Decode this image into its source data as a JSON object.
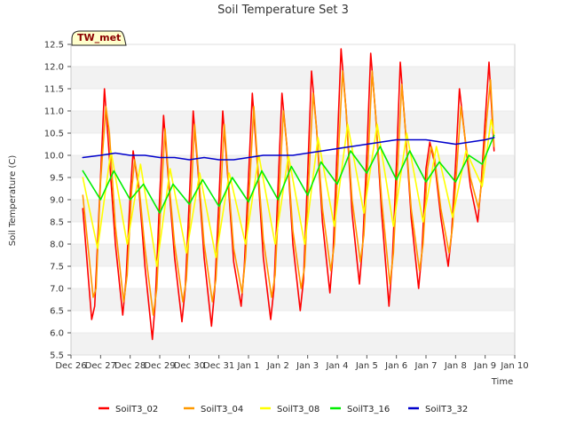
{
  "chart_data": {
    "type": "line",
    "title": "Soil Temperature Set 3",
    "badge": "TW_met",
    "xlabel": "Time",
    "ylabel": "Soil Temperature (C)",
    "xlim": [
      "Dec 26",
      "Jan 10"
    ],
    "ylim": [
      5.5,
      12.5
    ],
    "yticks": [
      5.5,
      6.0,
      6.5,
      7.0,
      7.5,
      8.0,
      8.5,
      9.0,
      9.5,
      10.0,
      10.5,
      11.0,
      11.5,
      12.0,
      12.5
    ],
    "ytick_labels": [
      "5.5",
      "6.0",
      "6.5",
      "7.0",
      "7.5",
      "8.0",
      "8.5",
      "9.0",
      "9.5",
      "10.0",
      "10.5",
      "11.0",
      "11.5",
      "12.0",
      "12.5"
    ],
    "xtick_labels": [
      "Dec 26",
      "Dec 27",
      "Dec 28",
      "Dec 29",
      "Dec 30",
      "Dec 31",
      "Jan 1",
      "Jan 2",
      "Jan 3",
      "Jan 4",
      "Jan 5",
      "Jan 6",
      "Jan 7",
      "Jan 8",
      "Jan 9",
      "Jan 10"
    ],
    "grid": "horizontal bands",
    "legend_position": "bottom",
    "x_unit_note": "x values are days since Dec 26",
    "series": [
      {
        "name": "SoilT3_02",
        "color": "#ff0000",
        "x": [
          0.4,
          0.7,
          0.8,
          1.0,
          1.13,
          1.25,
          1.5,
          1.75,
          1.86,
          2.0,
          2.1,
          2.3,
          2.5,
          2.75,
          2.85,
          3.0,
          3.13,
          3.3,
          3.5,
          3.75,
          3.86,
          4.0,
          4.13,
          4.3,
          4.5,
          4.75,
          4.86,
          5.0,
          5.13,
          5.3,
          5.5,
          5.75,
          5.86,
          6.0,
          6.13,
          6.3,
          6.5,
          6.75,
          6.86,
          7.0,
          7.13,
          7.3,
          7.5,
          7.75,
          7.86,
          8.0,
          8.13,
          8.3,
          8.5,
          8.75,
          8.86,
          9.0,
          9.13,
          9.3,
          9.5,
          9.75,
          9.86,
          10.0,
          10.13,
          10.3,
          10.5,
          10.75,
          10.86,
          11.0,
          11.13,
          11.3,
          11.5,
          11.75,
          11.86,
          12.0,
          12.13,
          12.3,
          12.5,
          12.75,
          12.86,
          13.0,
          13.13,
          13.3,
          13.5,
          13.75,
          13.86,
          14.0,
          14.13,
          14.3
        ],
        "y": [
          8.8,
          6.3,
          6.6,
          9.5,
          11.5,
          10.4,
          8.0,
          6.4,
          7.2,
          9.1,
          10.1,
          9.2,
          7.5,
          5.85,
          6.7,
          9.1,
          10.9,
          9.4,
          7.7,
          6.25,
          7.0,
          9.0,
          11.0,
          9.6,
          7.7,
          6.15,
          7.0,
          9.0,
          11.0,
          9.5,
          7.6,
          6.6,
          7.5,
          9.5,
          11.4,
          9.8,
          7.7,
          6.3,
          7.0,
          9.3,
          11.4,
          10.2,
          8.0,
          6.5,
          7.2,
          9.6,
          11.9,
          10.6,
          8.5,
          6.9,
          7.8,
          10.2,
          12.4,
          11.0,
          8.7,
          7.1,
          8.0,
          10.0,
          12.3,
          10.9,
          8.7,
          6.6,
          7.6,
          9.8,
          12.1,
          10.6,
          8.6,
          7.0,
          7.8,
          9.7,
          10.3,
          9.8,
          8.6,
          7.5,
          8.2,
          9.8,
          11.5,
          10.5,
          9.3,
          8.5,
          9.3,
          10.8,
          12.1,
          10.1
        ]
      },
      {
        "name": "SoilT3_04",
        "color": "#ff9900",
        "x": [
          0.4,
          0.75,
          0.85,
          1.0,
          1.18,
          1.3,
          1.5,
          1.78,
          1.9,
          2.05,
          2.15,
          2.3,
          2.5,
          2.78,
          2.9,
          3.05,
          3.18,
          3.3,
          3.5,
          3.78,
          3.9,
          4.05,
          4.18,
          4.3,
          4.5,
          4.78,
          4.9,
          5.05,
          5.18,
          5.3,
          5.5,
          5.78,
          5.9,
          6.05,
          6.18,
          6.3,
          6.5,
          6.78,
          6.9,
          7.05,
          7.18,
          7.3,
          7.5,
          7.78,
          7.9,
          8.05,
          8.18,
          8.3,
          8.5,
          8.78,
          8.9,
          9.05,
          9.18,
          9.3,
          9.5,
          9.78,
          9.9,
          10.05,
          10.18,
          10.3,
          10.5,
          10.78,
          10.9,
          11.05,
          11.18,
          11.3,
          11.5,
          11.78,
          11.9,
          12.05,
          12.18,
          12.3,
          12.5,
          12.78,
          12.9,
          13.05,
          13.18,
          13.3,
          13.5,
          13.78,
          13.9,
          14.05,
          14.18,
          14.3
        ],
        "y": [
          9.1,
          6.8,
          7.0,
          9.4,
          11.1,
          10.5,
          8.4,
          6.7,
          7.3,
          9.2,
          9.9,
          9.3,
          7.9,
          6.4,
          7.0,
          9.1,
          10.6,
          9.5,
          8.0,
          6.7,
          7.2,
          9.0,
          10.7,
          9.7,
          8.0,
          6.7,
          7.2,
          9.0,
          10.7,
          9.6,
          7.9,
          6.9,
          7.7,
          9.5,
          11.1,
          9.9,
          8.1,
          6.8,
          7.3,
          9.3,
          11.0,
          10.2,
          8.3,
          7.0,
          7.5,
          9.6,
          11.4,
          10.6,
          8.8,
          7.4,
          8.0,
          10.2,
          11.9,
          11.0,
          9.0,
          7.6,
          8.2,
          10.0,
          11.9,
          10.9,
          9.0,
          7.1,
          7.8,
          9.8,
          11.6,
          10.6,
          8.8,
          7.4,
          8.0,
          9.7,
          10.2,
          9.9,
          8.8,
          7.8,
          8.4,
          9.8,
          11.1,
          10.5,
          9.5,
          8.8,
          9.5,
          10.8,
          11.7,
          10.2
        ]
      },
      {
        "name": "SoilT3_08",
        "color": "#ffff00",
        "x": [
          0.4,
          0.9,
          1.35,
          1.9,
          2.35,
          2.9,
          3.35,
          3.9,
          4.35,
          4.9,
          5.35,
          5.9,
          6.35,
          6.9,
          7.35,
          7.9,
          8.35,
          8.9,
          9.35,
          9.9,
          10.35,
          10.9,
          11.35,
          11.9,
          12.35,
          12.9,
          13.35,
          13.9,
          14.2,
          14.3
        ],
        "y": [
          9.5,
          7.9,
          10.1,
          8.0,
          9.8,
          7.5,
          9.7,
          7.8,
          9.6,
          7.7,
          9.6,
          8.0,
          10.0,
          8.0,
          10.0,
          8.0,
          10.4,
          8.4,
          10.7,
          8.7,
          10.7,
          8.4,
          10.5,
          8.5,
          10.2,
          8.6,
          10.1,
          9.3,
          10.8,
          10.5
        ]
      },
      {
        "name": "SoilT3_16",
        "color": "#00ee00",
        "x": [
          0.4,
          1.0,
          1.45,
          2.0,
          2.45,
          3.0,
          3.45,
          4.0,
          4.45,
          5.0,
          5.45,
          6.0,
          6.45,
          7.0,
          7.45,
          8.0,
          8.45,
          9.0,
          9.45,
          10.0,
          10.45,
          11.0,
          11.45,
          12.0,
          12.45,
          13.0,
          13.45,
          13.9,
          14.3
        ],
        "y": [
          9.65,
          9.0,
          9.65,
          9.0,
          9.35,
          8.7,
          9.35,
          8.9,
          9.45,
          8.85,
          9.5,
          8.95,
          9.65,
          9.0,
          9.75,
          9.1,
          9.85,
          9.35,
          10.1,
          9.6,
          10.2,
          9.45,
          10.1,
          9.4,
          9.85,
          9.4,
          10.0,
          9.8,
          10.45
        ]
      },
      {
        "name": "SoilT3_32",
        "color": "#0000cc",
        "x": [
          0.4,
          1.0,
          1.5,
          2.0,
          2.5,
          3.0,
          3.5,
          4.0,
          4.5,
          5.0,
          5.5,
          6.0,
          6.5,
          7.0,
          7.5,
          8.0,
          8.5,
          9.0,
          9.5,
          10.0,
          10.5,
          11.0,
          11.5,
          12.0,
          12.5,
          13.0,
          13.5,
          14.0,
          14.3
        ],
        "y": [
          9.95,
          10.0,
          10.05,
          10.0,
          10.0,
          9.95,
          9.95,
          9.9,
          9.95,
          9.9,
          9.9,
          9.95,
          10.0,
          10.0,
          10.0,
          10.05,
          10.1,
          10.15,
          10.2,
          10.25,
          10.3,
          10.35,
          10.35,
          10.35,
          10.3,
          10.25,
          10.3,
          10.35,
          10.4
        ]
      }
    ]
  }
}
